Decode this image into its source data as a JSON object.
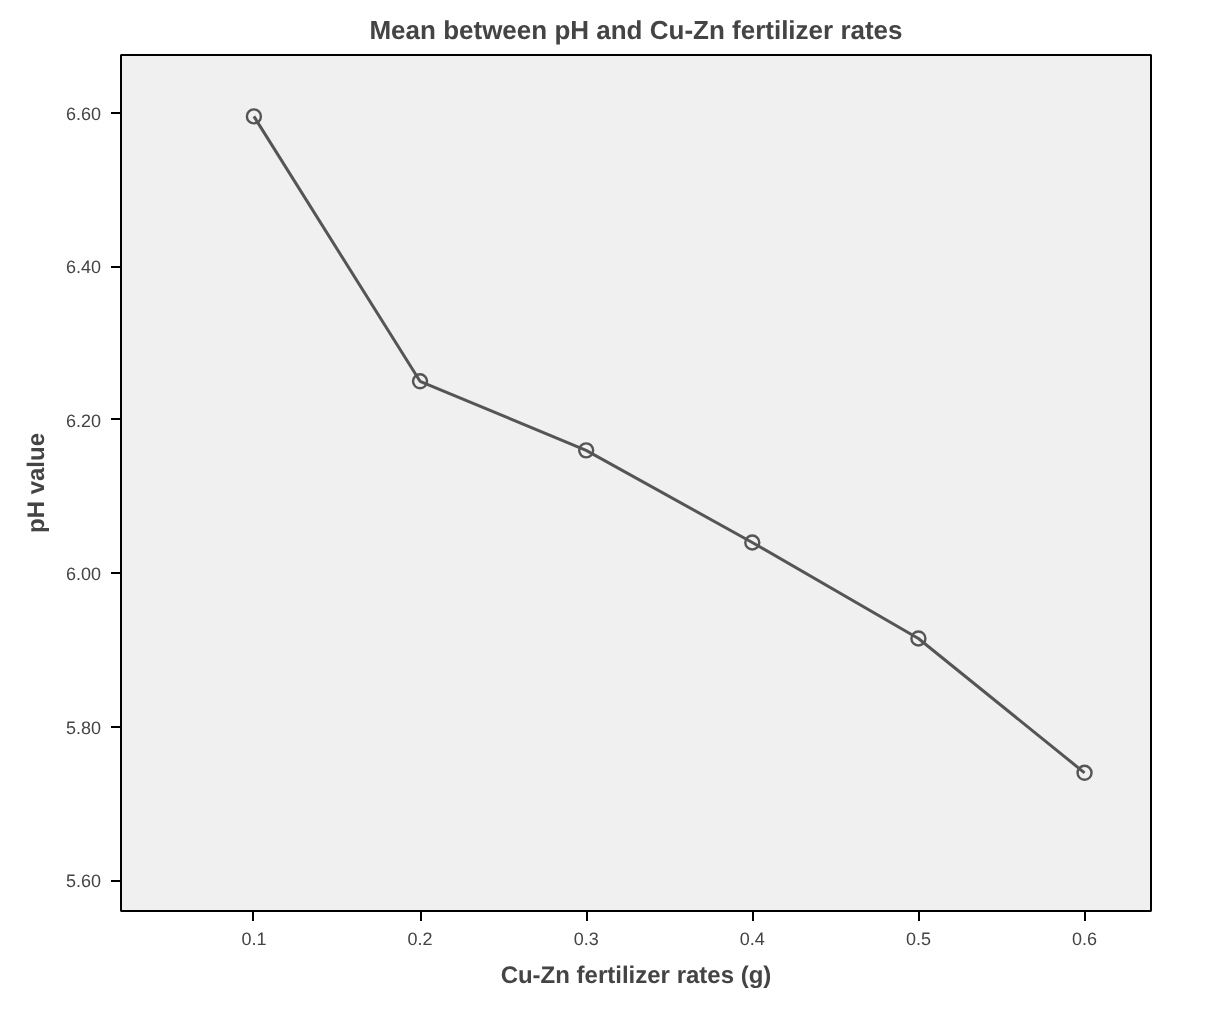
{
  "chart_data": {
    "type": "line",
    "title": "Mean between pH and Cu-Zn fertilizer rates",
    "xlabel": "Cu-Zn fertilizer rates (g)",
    "ylabel": "pH value",
    "x": [
      0.1,
      0.2,
      0.3,
      0.4,
      0.5,
      0.6
    ],
    "series": [
      {
        "color": "#555555",
        "values": [
          6.595,
          6.25,
          6.16,
          6.04,
          5.915,
          5.74
        ]
      }
    ],
    "xlim": [
      0.02,
      0.64
    ],
    "ylim": [
      5.56,
      6.675
    ],
    "xticks": [
      0.1,
      0.2,
      0.3,
      0.4,
      0.5,
      0.6
    ],
    "yticks": [
      {
        "value": 5.6,
        "label": "5.60"
      },
      {
        "value": 5.8,
        "label": "5.80"
      },
      {
        "value": 6.0,
        "label": "6.00"
      },
      {
        "value": 6.2,
        "label": "6.20"
      },
      {
        "value": 6.4,
        "label": "6.40"
      },
      {
        "value": 6.6,
        "label": "6.60"
      }
    ],
    "marker": "circle",
    "line_style": "solid",
    "grid": false
  }
}
